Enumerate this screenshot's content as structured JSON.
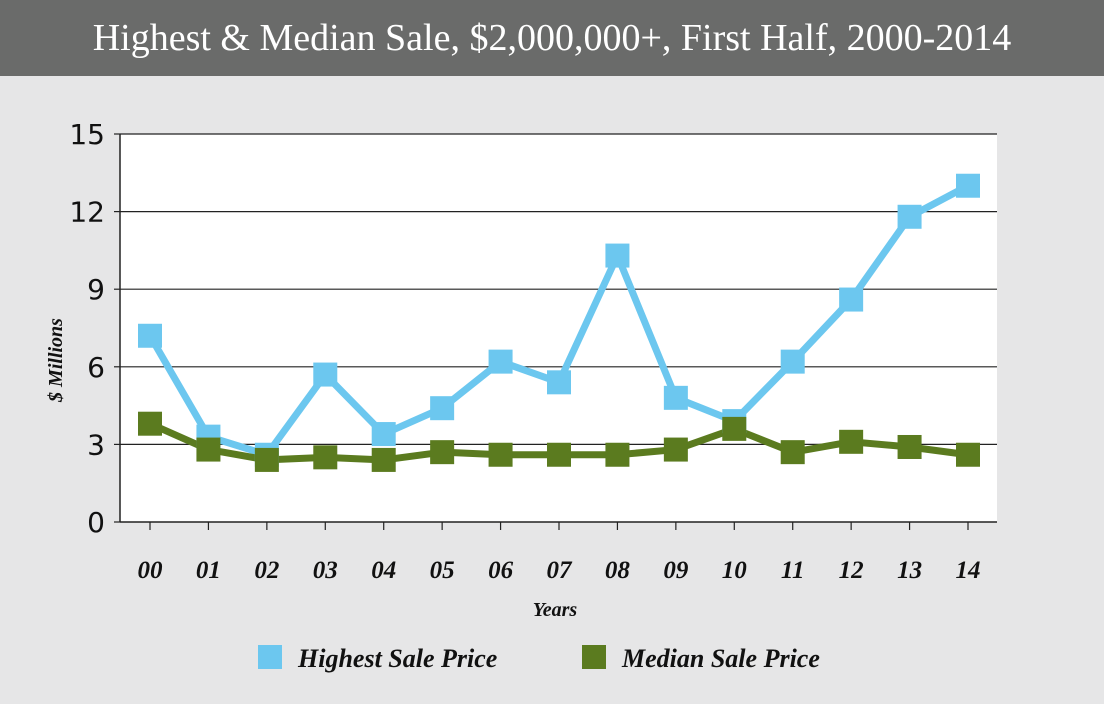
{
  "title": "Highest & Median Sale, $2,000,000+, First Half, 2000-2014",
  "colors": {
    "title_bar": "#6a6b6a",
    "background": "#e6e6e7",
    "plot_background": "#ffffff",
    "highest": "#6cc7ef",
    "median": "#5b7b1f"
  },
  "chart_data": {
    "type": "line",
    "title": "Highest & Median Sale, $2,000,000+, First Half, 2000-2014",
    "xlabel": "Years",
    "ylabel": "$ Millions",
    "categories": [
      "00",
      "01",
      "02",
      "03",
      "04",
      "05",
      "06",
      "07",
      "08",
      "09",
      "10",
      "11",
      "12",
      "13",
      "14"
    ],
    "ylim": [
      0,
      15
    ],
    "yticks": [
      0,
      3,
      6,
      9,
      12,
      15
    ],
    "grid": true,
    "legend_position": "bottom",
    "series": [
      {
        "name": "Highest Sale Price",
        "color": "#6cc7ef",
        "values": [
          7.2,
          3.3,
          2.6,
          5.7,
          3.4,
          4.4,
          6.2,
          5.4,
          10.3,
          4.8,
          3.9,
          6.2,
          8.6,
          11.8,
          13.0
        ]
      },
      {
        "name": "Median Sale Price",
        "color": "#5b7b1f",
        "values": [
          3.8,
          2.8,
          2.4,
          2.5,
          2.4,
          2.7,
          2.6,
          2.6,
          2.6,
          2.8,
          3.6,
          2.7,
          3.1,
          2.9,
          2.6
        ]
      }
    ]
  }
}
